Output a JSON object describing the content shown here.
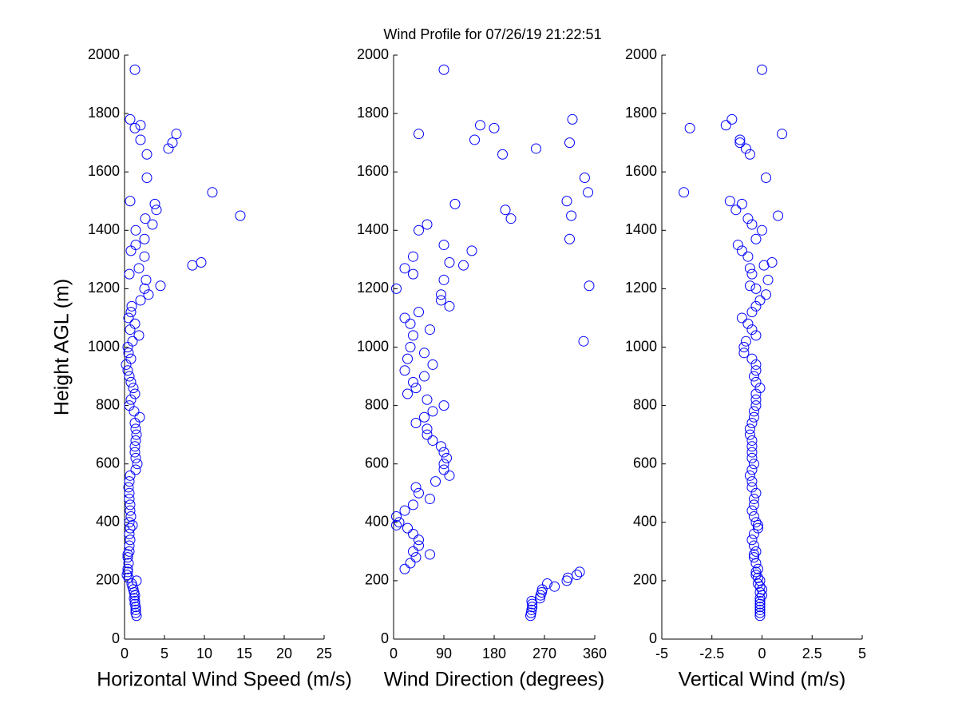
{
  "chart_data": [
    {
      "type": "scatter",
      "title": "Wind Profile for  07/26/19 21:22:51",
      "xlabel": "Horizontal Wind Speed (m/s)",
      "ylabel": "Height AGL (m)",
      "color": "#0000ff",
      "xlim": [
        0,
        25
      ],
      "ylim": [
        0,
        2000
      ],
      "xticks": [
        0,
        5,
        10,
        15,
        20,
        25
      ],
      "yticks": [
        0,
        200,
        400,
        600,
        800,
        1000,
        1200,
        1400,
        1600,
        1800,
        2000
      ],
      "x": [
        1.5,
        1.4,
        1.4,
        1.4,
        1.3,
        1.3,
        1.2,
        1.3,
        1.2,
        1.1,
        1.0,
        0.9,
        1.5,
        0.5,
        0.3,
        0.4,
        0.4,
        0.5,
        0.4,
        0.4,
        0.6,
        0.6,
        0.7,
        0.6,
        0.7,
        1.0,
        0.6,
        0.8,
        0.7,
        0.7,
        0.6,
        0.6,
        0.5,
        0.6,
        0.7,
        1.4,
        1.6,
        1.4,
        1.3,
        1.3,
        1.4,
        1.5,
        1.4,
        1.3,
        1.9,
        1.2,
        0.6,
        0.8,
        1.3,
        1.1,
        0.8,
        0.6,
        0.4,
        0.2,
        0.8,
        0.5,
        0.4,
        1.0,
        1.8,
        0.7,
        1.3,
        0.5,
        0.8,
        0.9,
        2.0,
        3.0,
        2.5,
        4.5,
        2.7,
        0.6,
        1.8,
        8.5,
        9.6,
        2.5,
        0.8,
        1.4,
        2.5,
        1.4,
        3.5,
        2.6,
        14.5,
        4.0,
        3.8,
        0.7,
        11.0,
        2.8,
        2.8,
        5.5,
        6.0,
        2.0,
        6.5,
        1.3,
        2.0,
        0.7,
        1.3
      ],
      "y": [
        80,
        90,
        100,
        110,
        120,
        130,
        140,
        150,
        160,
        170,
        180,
        190,
        200,
        210,
        220,
        230,
        240,
        260,
        280,
        290,
        300,
        320,
        340,
        360,
        380,
        390,
        400,
        420,
        440,
        460,
        480,
        500,
        520,
        540,
        560,
        580,
        600,
        620,
        640,
        660,
        680,
        700,
        720,
        740,
        760,
        780,
        800,
        820,
        840,
        860,
        880,
        900,
        920,
        940,
        960,
        980,
        1000,
        1020,
        1040,
        1060,
        1080,
        1100,
        1120,
        1140,
        1160,
        1180,
        1200,
        1210,
        1230,
        1250,
        1270,
        1280,
        1290,
        1310,
        1330,
        1350,
        1370,
        1400,
        1420,
        1440,
        1450,
        1470,
        1490,
        1500,
        1530,
        1580,
        1660,
        1680,
        1700,
        1710,
        1730,
        1750,
        1760,
        1780,
        1950
      ]
    },
    {
      "type": "scatter",
      "xlabel": "Wind Direction (degrees)",
      "color": "#0000ff",
      "xlim": [
        0,
        360
      ],
      "ylim": [
        0,
        2000
      ],
      "xticks": [
        0,
        90,
        180,
        270,
        360
      ],
      "yticks": [
        0,
        200,
        400,
        600,
        800,
        1000,
        1200,
        1400,
        1600,
        1800,
        2000
      ],
      "x": [
        245,
        246,
        247,
        248,
        248,
        247,
        262,
        263,
        265,
        266,
        288,
        275,
        310,
        312,
        328,
        333,
        20,
        30,
        40,
        65,
        35,
        45,
        45,
        35,
        25,
        5,
        10,
        5,
        20,
        35,
        65,
        45,
        40,
        75,
        100,
        90,
        90,
        95,
        90,
        85,
        70,
        60,
        60,
        40,
        55,
        70,
        90,
        60,
        25,
        40,
        35,
        55,
        20,
        70,
        25,
        55,
        30,
        340,
        35,
        65,
        30,
        20,
        45,
        100,
        85,
        85,
        5,
        350,
        90,
        35,
        20,
        125,
        100,
        35,
        140,
        90,
        315,
        45,
        60,
        210,
        318,
        200,
        110,
        310,
        348,
        342,
        195,
        255,
        315,
        145,
        45,
        180,
        155,
        320,
        90
      ],
      "y": [
        80,
        90,
        100,
        110,
        120,
        130,
        140,
        150,
        160,
        170,
        180,
        190,
        200,
        210,
        220,
        230,
        240,
        260,
        280,
        290,
        300,
        320,
        340,
        360,
        380,
        390,
        400,
        420,
        440,
        460,
        480,
        500,
        520,
        540,
        560,
        580,
        600,
        620,
        640,
        660,
        680,
        700,
        720,
        740,
        760,
        780,
        800,
        820,
        840,
        860,
        880,
        900,
        920,
        940,
        960,
        980,
        1000,
        1020,
        1040,
        1060,
        1080,
        1100,
        1120,
        1140,
        1160,
        1180,
        1200,
        1210,
        1230,
        1250,
        1270,
        1280,
        1290,
        1310,
        1330,
        1350,
        1370,
        1400,
        1420,
        1440,
        1450,
        1470,
        1490,
        1500,
        1530,
        1580,
        1660,
        1680,
        1700,
        1710,
        1730,
        1750,
        1760,
        1780,
        1950
      ]
    },
    {
      "type": "scatter",
      "xlabel": "Vertical Wind (m/s)",
      "color": "#0000ff",
      "xlim": [
        -5,
        5
      ],
      "ylim": [
        0,
        2000
      ],
      "xticks": [
        -5,
        -2.5,
        0,
        2.5,
        5
      ],
      "yticks": [
        0,
        200,
        400,
        600,
        800,
        1000,
        1200,
        1400,
        1600,
        1800,
        2000
      ],
      "x": [
        -0.1,
        -0.1,
        -0.1,
        -0.1,
        -0.1,
        -0.1,
        -0.1,
        0,
        -0.1,
        0,
        -0.1,
        -0.2,
        -0.1,
        -0.2,
        -0.3,
        -0.3,
        -0.2,
        -0.3,
        -0.4,
        -0.4,
        -0.3,
        -0.4,
        -0.5,
        -0.4,
        -0.2,
        -0.2,
        -0.3,
        -0.4,
        -0.5,
        -0.4,
        -0.4,
        -0.3,
        -0.5,
        -0.5,
        -0.6,
        -0.5,
        -0.4,
        -0.5,
        -0.5,
        -0.5,
        -0.5,
        -0.6,
        -0.6,
        -0.5,
        -0.4,
        -0.4,
        -0.3,
        -0.3,
        -0.3,
        -0.1,
        -0.3,
        -0.4,
        -0.3,
        -0.3,
        -0.5,
        -0.9,
        -0.9,
        -0.8,
        -0.3,
        -0.5,
        -0.7,
        -1.0,
        -0.5,
        -0.3,
        -0.1,
        0.2,
        -0.3,
        -0.6,
        0.3,
        -0.5,
        -0.6,
        0.1,
        0.5,
        -0.7,
        -1.0,
        -1.2,
        -0.3,
        0,
        -0.5,
        -0.7,
        0.8,
        -1.3,
        -1.0,
        -1.6,
        -3.9,
        0.2,
        -0.6,
        -0.8,
        -1.1,
        -1.1,
        1.0,
        -3.6,
        -1.8,
        -1.5,
        0
      ],
      "y": [
        80,
        90,
        100,
        110,
        120,
        130,
        140,
        150,
        160,
        170,
        180,
        190,
        200,
        210,
        220,
        230,
        240,
        260,
        280,
        290,
        300,
        320,
        340,
        360,
        380,
        390,
        400,
        420,
        440,
        460,
        480,
        500,
        520,
        540,
        560,
        580,
        600,
        620,
        640,
        660,
        680,
        700,
        720,
        740,
        760,
        780,
        800,
        820,
        840,
        860,
        880,
        900,
        920,
        940,
        960,
        980,
        1000,
        1020,
        1040,
        1060,
        1080,
        1100,
        1120,
        1140,
        1160,
        1180,
        1200,
        1210,
        1230,
        1250,
        1270,
        1280,
        1290,
        1310,
        1330,
        1350,
        1370,
        1400,
        1420,
        1440,
        1450,
        1470,
        1490,
        1500,
        1530,
        1580,
        1660,
        1680,
        1700,
        1710,
        1730,
        1750,
        1760,
        1780,
        1950
      ]
    }
  ]
}
